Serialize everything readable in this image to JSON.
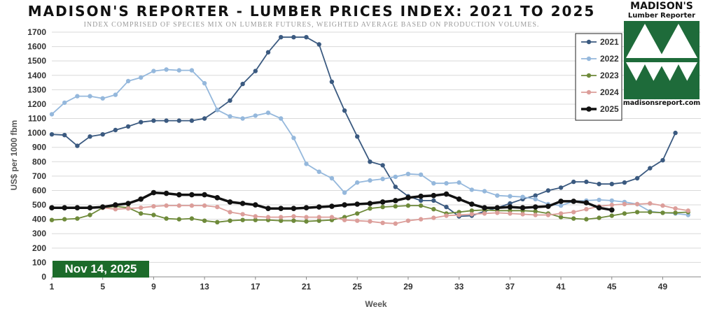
{
  "chart_data": {
    "type": "line",
    "title": "MADISON'S REPORTER - LUMBER PRICES INDEX: 2021 TO 2025",
    "subtitle": "INDEX COMPRISED OF SPECIES MIX ON LUMBER FUTURES, WEIGHTED AVERAGE BASED ON PRODUCTION VOLUMES.",
    "xlabel": "Week",
    "ylabel": "US$ per 1000 fbm",
    "xlim": [
      1,
      52
    ],
    "ylim": [
      0,
      1700
    ],
    "x_ticks": [
      1,
      5,
      9,
      13,
      17,
      21,
      25,
      29,
      33,
      37,
      41,
      45,
      49
    ],
    "y_ticks": [
      0,
      100,
      200,
      300,
      400,
      500,
      600,
      700,
      800,
      900,
      1000,
      1100,
      1200,
      1300,
      1400,
      1500,
      1600,
      1700
    ],
    "grid": "horizontal",
    "legend_position": "top-right",
    "series": [
      {
        "name": "2021",
        "color": "#3b5a80",
        "start_week": 1,
        "values": [
          990,
          985,
          910,
          975,
          990,
          1020,
          1045,
          1075,
          1085,
          1085,
          1085,
          1085,
          1100,
          1160,
          1225,
          1340,
          1430,
          1560,
          1665,
          1665,
          1665,
          1615,
          1355,
          1155,
          975,
          800,
          775,
          625,
          560,
          530,
          530,
          485,
          420,
          425,
          455,
          480,
          510,
          540,
          565,
          600,
          620,
          660,
          660,
          645,
          645,
          655,
          685,
          755,
          810,
          1000
        ]
      },
      {
        "name": "2022",
        "color": "#95b8dc",
        "start_week": 1,
        "values": [
          1130,
          1210,
          1255,
          1255,
          1240,
          1265,
          1360,
          1385,
          1430,
          1440,
          1435,
          1435,
          1345,
          1160,
          1115,
          1100,
          1120,
          1140,
          1100,
          965,
          785,
          730,
          685,
          585,
          655,
          670,
          680,
          695,
          715,
          710,
          650,
          650,
          655,
          605,
          595,
          565,
          560,
          555,
          540,
          505,
          495,
          525,
          530,
          535,
          530,
          520,
          505,
          455,
          445,
          440,
          430
        ]
      },
      {
        "name": "2023",
        "color": "#6e8a3a",
        "start_week": 1,
        "values": [
          395,
          400,
          405,
          430,
          480,
          490,
          480,
          440,
          430,
          405,
          400,
          405,
          390,
          380,
          390,
          395,
          395,
          395,
          390,
          390,
          385,
          390,
          395,
          415,
          440,
          475,
          485,
          490,
          495,
          495,
          470,
          440,
          450,
          460,
          465,
          460,
          460,
          460,
          455,
          440,
          415,
          405,
          400,
          410,
          425,
          440,
          450,
          450,
          445,
          445,
          450
        ]
      },
      {
        "name": "2024",
        "color": "#dc9e9a",
        "start_week": 1,
        "values": [
          480,
          480,
          480,
          480,
          480,
          470,
          475,
          480,
          490,
          495,
          495,
          495,
          495,
          485,
          450,
          435,
          420,
          415,
          415,
          420,
          415,
          415,
          415,
          395,
          390,
          385,
          375,
          370,
          390,
          400,
          410,
          425,
          430,
          435,
          440,
          445,
          440,
          435,
          430,
          430,
          440,
          450,
          470,
          490,
          500,
          505,
          505,
          510,
          495,
          475,
          460
        ]
      },
      {
        "name": "2025",
        "color": "#111111",
        "start_week": 1,
        "values": [
          480,
          480,
          480,
          480,
          485,
          500,
          510,
          540,
          585,
          580,
          570,
          570,
          570,
          550,
          520,
          510,
          500,
          475,
          475,
          475,
          480,
          485,
          490,
          500,
          505,
          510,
          520,
          530,
          550,
          560,
          565,
          575,
          540,
          505,
          480,
          480,
          485,
          480,
          485,
          490,
          525,
          525,
          515,
          480,
          465
        ]
      }
    ]
  },
  "date_badge": "Nov 14, 2025",
  "logo": {
    "name": "MADISON'S",
    "tagline": "Lumber Reporter",
    "url": "madisonsreport.com",
    "accent_color": "#1e6b3a"
  }
}
